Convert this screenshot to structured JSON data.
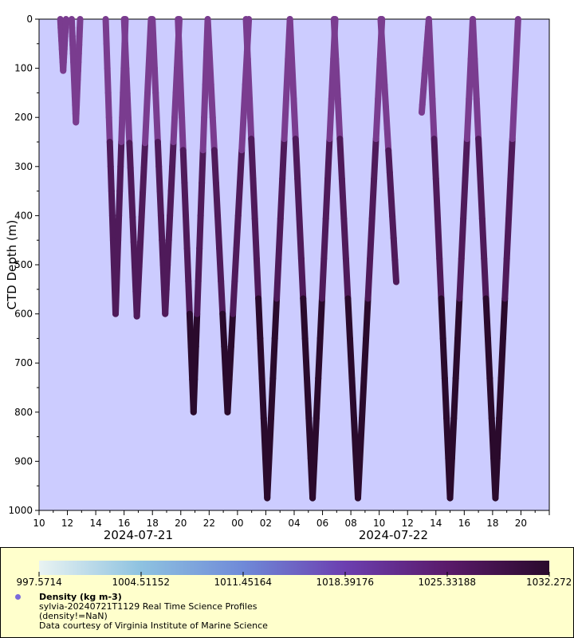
{
  "chart_data": {
    "type": "scatter",
    "ylabel": "CTD Depth (m)",
    "ylim": [
      1000,
      0
    ],
    "y_ticks": [
      0,
      100,
      200,
      300,
      400,
      500,
      600,
      700,
      800,
      900,
      1000
    ],
    "x_range_hours": [
      10,
      46
    ],
    "x_tick_labels": [
      "10",
      "12",
      "14",
      "16",
      "18",
      "20",
      "22",
      "00",
      "02",
      "04",
      "06",
      "08",
      "10",
      "12",
      "14",
      "16",
      "18",
      "20"
    ],
    "x_date_labels": [
      "2024-07-21",
      "2024-07-22"
    ],
    "grid": false,
    "plot_background": "#ccccff",
    "colors": {
      "shallow": "#7a3c8f",
      "mid": "#4f1a5a",
      "deep": "#2a0a2c"
    },
    "profiles": [
      {
        "turns": [
          [
            11.5,
            0
          ],
          [
            11.7,
            105
          ],
          [
            11.9,
            0
          ]
        ]
      },
      {
        "turns": [
          [
            12.3,
            0
          ],
          [
            12.6,
            210
          ],
          [
            12.9,
            0
          ]
        ]
      },
      {
        "turns": [
          [
            14.7,
            0
          ],
          [
            15.4,
            600
          ],
          [
            16.1,
            0
          ]
        ]
      },
      {
        "turns": [
          [
            16.0,
            0
          ],
          [
            16.9,
            605
          ],
          [
            17.9,
            0
          ]
        ]
      },
      {
        "turns": [
          [
            18.0,
            0
          ],
          [
            18.9,
            600
          ],
          [
            19.9,
            0
          ]
        ]
      },
      {
        "turns": [
          [
            19.8,
            0
          ],
          [
            20.9,
            800
          ],
          [
            21.9,
            0
          ]
        ]
      },
      {
        "turns": [
          [
            21.9,
            0
          ],
          [
            23.3,
            800
          ],
          [
            24.8,
            0
          ]
        ]
      },
      {
        "turns": [
          [
            24.6,
            0
          ],
          [
            26.1,
            975
          ],
          [
            27.7,
            0
          ]
        ]
      },
      {
        "turns": [
          [
            27.7,
            0
          ],
          [
            29.3,
            975
          ],
          [
            30.9,
            0
          ]
        ]
      },
      {
        "turns": [
          [
            30.8,
            0
          ],
          [
            32.5,
            975
          ],
          [
            34.2,
            0
          ]
        ]
      },
      {
        "turns": [
          [
            34.1,
            0
          ],
          [
            35.2,
            535
          ]
        ]
      },
      {
        "turns": [
          [
            37.0,
            190
          ],
          [
            37.5,
            0
          ],
          [
            39.0,
            975
          ],
          [
            40.6,
            0
          ]
        ]
      },
      {
        "turns": [
          [
            40.6,
            0
          ],
          [
            42.2,
            975
          ],
          [
            43.8,
            0
          ]
        ]
      }
    ]
  },
  "legend": {
    "colorbar_ticks": [
      "997.5714",
      "1004.51152",
      "1011.45164",
      "1018.39176",
      "1025.33188",
      "1032.272"
    ],
    "variable": "Density (kg m-3)",
    "dataset": "sylvia-20240721T1129 Real Time Science Profiles",
    "constraint": "(density!=NaN)",
    "credit": "Data courtesy of Virginia Institute of Marine Science"
  }
}
